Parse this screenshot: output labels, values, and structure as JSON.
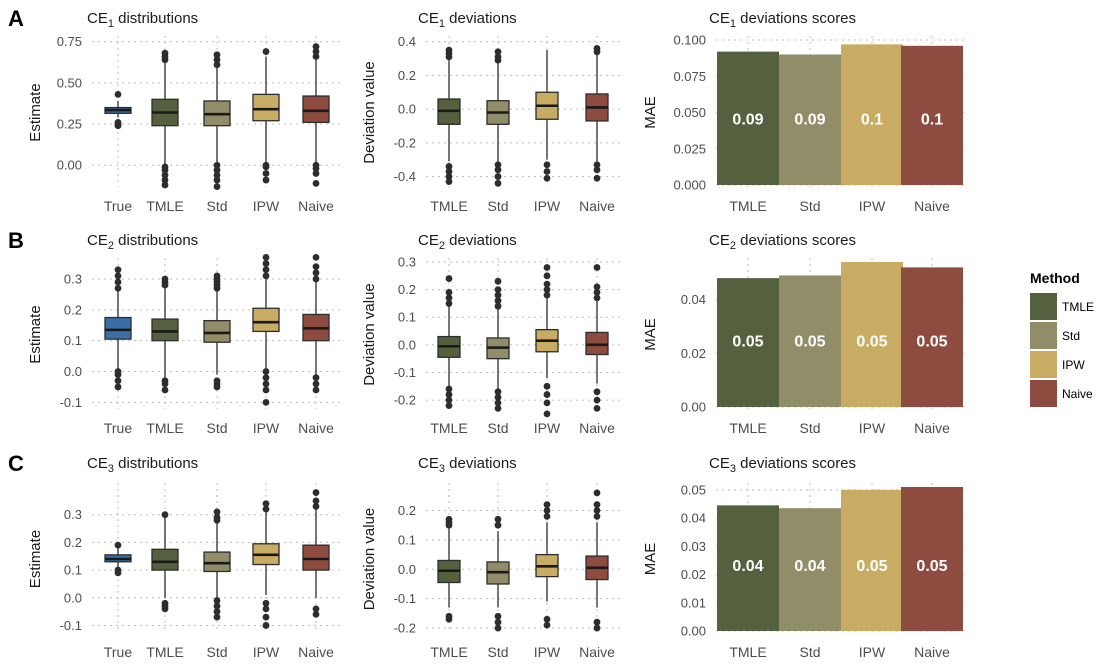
{
  "colors": {
    "True": "#3b6ea5",
    "TMLE": "#55603f",
    "Std": "#918d68",
    "IPW": "#c9ac64",
    "Naive": "#8e4c40"
  },
  "legend": {
    "title": "Method",
    "items": [
      "TMLE",
      "Std",
      "IPW",
      "Naive"
    ]
  },
  "chart_data": [
    {
      "panel": "A",
      "kind": "distributions",
      "type": "box",
      "title": "CE",
      "title_sub": "1",
      "title_rest": " distributions",
      "ylabel": "Estimate",
      "ylim": [
        -0.12,
        0.76
      ],
      "yticks": [
        0.0,
        0.25,
        0.5,
        0.75
      ],
      "yticklabels": [
        "0.00",
        "0.25",
        "0.50",
        "0.75"
      ],
      "categories": [
        "True",
        "TMLE",
        "Std",
        "IPW",
        "Naive"
      ],
      "boxes": [
        {
          "name": "True",
          "min": 0.29,
          "q1": 0.315,
          "median": 0.335,
          "q3": 0.35,
          "max": 0.39,
          "outliers": [
            0.24,
            0.25,
            0.26,
            0.43
          ]
        },
        {
          "name": "TMLE",
          "min": -0.04,
          "q1": 0.24,
          "median": 0.32,
          "q3": 0.4,
          "max": 0.63,
          "outliers": [
            -0.12,
            -0.09,
            -0.06,
            -0.03,
            -0.01,
            0.64,
            0.66,
            0.68
          ]
        },
        {
          "name": "Std",
          "min": -0.03,
          "q1": 0.24,
          "median": 0.31,
          "q3": 0.39,
          "max": 0.6,
          "outliers": [
            -0.13,
            -0.09,
            -0.06,
            -0.03,
            0.0,
            0.61,
            0.64,
            0.67
          ]
        },
        {
          "name": "IPW",
          "min": 0.0,
          "q1": 0.27,
          "median": 0.34,
          "q3": 0.43,
          "max": 0.66,
          "outliers": [
            -0.09,
            -0.05,
            -0.01,
            0.0,
            0.69
          ]
        },
        {
          "name": "Naive",
          "min": 0.0,
          "q1": 0.26,
          "median": 0.33,
          "q3": 0.42,
          "max": 0.64,
          "outliers": [
            -0.11,
            -0.05,
            -0.02,
            0.0,
            0.66,
            0.69,
            0.72
          ]
        }
      ]
    },
    {
      "panel": "A",
      "kind": "deviations",
      "type": "box",
      "title": "CE",
      "title_sub": "1",
      "title_rest": " deviations",
      "ylabel": "Deviation value",
      "ylim": [
        -0.45,
        0.41
      ],
      "yticks": [
        -0.4,
        -0.2,
        0.0,
        0.2,
        0.4
      ],
      "yticklabels": [
        "-0.4",
        "-0.2",
        "0.0",
        "0.2",
        "0.4"
      ],
      "categories": [
        "TMLE",
        "Std",
        "IPW",
        "Naive"
      ],
      "boxes": [
        {
          "name": "TMLE",
          "min": -0.31,
          "q1": -0.09,
          "median": -0.01,
          "q3": 0.06,
          "max": 0.29,
          "outliers": [
            -0.43,
            -0.4,
            -0.37,
            -0.34,
            0.31,
            0.33,
            0.35
          ]
        },
        {
          "name": "Std",
          "min": -0.32,
          "q1": -0.09,
          "median": -0.02,
          "q3": 0.05,
          "max": 0.27,
          "outliers": [
            -0.44,
            -0.4,
            -0.36,
            -0.33,
            0.29,
            0.31,
            0.34
          ]
        },
        {
          "name": "IPW",
          "min": -0.3,
          "q1": -0.06,
          "median": 0.02,
          "q3": 0.1,
          "max": 0.35,
          "outliers": [
            -0.41,
            -0.37,
            -0.33
          ]
        },
        {
          "name": "Naive",
          "min": -0.31,
          "q1": -0.07,
          "median": 0.01,
          "q3": 0.09,
          "max": 0.33,
          "outliers": [
            -0.41,
            -0.36,
            -0.33,
            0.34,
            0.36
          ]
        }
      ]
    },
    {
      "panel": "A",
      "kind": "scores",
      "type": "bar",
      "title": "CE",
      "title_sub": "1",
      "title_rest": " deviations scores",
      "ylabel": "MAE",
      "ylim": [
        0,
        0.1
      ],
      "yticks": [
        0.0,
        0.025,
        0.05,
        0.075,
        0.1
      ],
      "yticklabels": [
        "0.000",
        "0.025",
        "0.050",
        "0.075",
        "0.100"
      ],
      "categories": [
        "TMLE",
        "Std",
        "IPW",
        "Naive"
      ],
      "values": [
        0.092,
        0.09,
        0.097,
        0.096
      ],
      "labels": [
        "0.09",
        "0.09",
        "0.1",
        "0.1"
      ]
    },
    {
      "panel": "B",
      "kind": "distributions",
      "type": "box",
      "title": "CE",
      "title_sub": "2",
      "title_rest": " distributions",
      "ylabel": "Estimate",
      "ylim": [
        -0.115,
        0.355
      ],
      "yticks": [
        -0.1,
        0.0,
        0.1,
        0.2,
        0.3
      ],
      "yticklabels": [
        "-0.1",
        "0.0",
        "0.1",
        "0.2",
        "0.3"
      ],
      "categories": [
        "True",
        "TMLE",
        "Std",
        "IPW",
        "Naive"
      ],
      "boxes": [
        {
          "name": "True",
          "min": 0.0,
          "q1": 0.105,
          "median": 0.135,
          "q3": 0.175,
          "max": 0.265,
          "outliers": [
            -0.05,
            -0.03,
            -0.01,
            0.0,
            0.27,
            0.29,
            0.31,
            0.33
          ]
        },
        {
          "name": "TMLE",
          "min": -0.02,
          "q1": 0.1,
          "median": 0.13,
          "q3": 0.17,
          "max": 0.27,
          "outliers": [
            -0.06,
            -0.04,
            -0.03,
            0.28,
            0.29,
            0.3
          ]
        },
        {
          "name": "Std",
          "min": -0.01,
          "q1": 0.095,
          "median": 0.125,
          "q3": 0.165,
          "max": 0.26,
          "outliers": [
            -0.05,
            -0.04,
            -0.03,
            0.27,
            0.28,
            0.29,
            0.3,
            0.31
          ]
        },
        {
          "name": "IPW",
          "min": 0.01,
          "q1": 0.13,
          "median": 0.16,
          "q3": 0.205,
          "max": 0.3,
          "outliers": [
            -0.1,
            -0.06,
            -0.04,
            -0.02,
            0.0,
            0.31,
            0.33,
            0.35,
            0.37
          ]
        },
        {
          "name": "Naive",
          "min": -0.01,
          "q1": 0.1,
          "median": 0.14,
          "q3": 0.185,
          "max": 0.29,
          "outliers": [
            -0.06,
            -0.04,
            -0.02,
            0.3,
            0.32,
            0.34,
            0.37
          ]
        }
      ]
    },
    {
      "panel": "B",
      "kind": "deviations",
      "type": "box",
      "title": "CE",
      "title_sub": "2",
      "title_rest": " deviations",
      "ylabel": "Deviation value",
      "ylim": [
        -0.225,
        0.3
      ],
      "yticks": [
        -0.2,
        -0.1,
        0.0,
        0.1,
        0.2,
        0.3
      ],
      "yticklabels": [
        "-0.2",
        "-0.1",
        "0.0",
        "0.1",
        "0.2",
        "0.3"
      ],
      "categories": [
        "TMLE",
        "Std",
        "IPW",
        "Naive"
      ],
      "boxes": [
        {
          "name": "TMLE",
          "min": -0.15,
          "q1": -0.045,
          "median": -0.005,
          "q3": 0.03,
          "max": 0.14,
          "outliers": [
            -0.22,
            -0.2,
            -0.18,
            -0.16,
            0.15,
            0.17,
            0.19,
            0.24
          ]
        },
        {
          "name": "Std",
          "min": -0.16,
          "q1": -0.05,
          "median": -0.01,
          "q3": 0.025,
          "max": 0.13,
          "outliers": [
            -0.23,
            -0.21,
            -0.19,
            -0.17,
            0.14,
            0.16,
            0.18,
            0.2,
            0.23
          ]
        },
        {
          "name": "IPW",
          "min": -0.12,
          "q1": -0.025,
          "median": 0.015,
          "q3": 0.055,
          "max": 0.17,
          "outliers": [
            -0.25,
            -0.21,
            -0.18,
            -0.15,
            0.18,
            0.2,
            0.22,
            0.25,
            0.28
          ]
        },
        {
          "name": "Naive",
          "min": -0.14,
          "q1": -0.035,
          "median": 0.0,
          "q3": 0.045,
          "max": 0.16,
          "outliers": [
            -0.23,
            -0.2,
            -0.17,
            0.17,
            0.19,
            0.21,
            0.28
          ]
        }
      ]
    },
    {
      "panel": "B",
      "kind": "scores",
      "type": "bar",
      "title": "CE",
      "title_sub": "2",
      "title_rest": " deviations scores",
      "ylabel": "MAE",
      "ylim": [
        0,
        0.054
      ],
      "yticks": [
        0.0,
        0.02,
        0.04
      ],
      "yticklabels": [
        "0.00",
        "0.02",
        "0.04"
      ],
      "categories": [
        "TMLE",
        "Std",
        "IPW",
        "Naive"
      ],
      "values": [
        0.048,
        0.049,
        0.054,
        0.052
      ],
      "labels": [
        "0.05",
        "0.05",
        "0.05",
        "0.05"
      ]
    },
    {
      "panel": "C",
      "kind": "distributions",
      "type": "box",
      "title": "CE",
      "title_sub": "3",
      "title_rest": " distributions",
      "ylabel": "Estimate",
      "ylim": [
        -0.12,
        0.4
      ],
      "yticks": [
        -0.1,
        0.0,
        0.1,
        0.2,
        0.3
      ],
      "yticklabels": [
        "-0.1",
        "0.0",
        "0.1",
        "0.2",
        "0.3"
      ],
      "categories": [
        "True",
        "TMLE",
        "Std",
        "IPW",
        "Naive"
      ],
      "boxes": [
        {
          "name": "True",
          "min": 0.105,
          "q1": 0.13,
          "median": 0.14,
          "q3": 0.155,
          "max": 0.18,
          "outliers": [
            0.09,
            0.1,
            0.19
          ]
        },
        {
          "name": "TMLE",
          "min": 0.0,
          "q1": 0.1,
          "median": 0.13,
          "q3": 0.175,
          "max": 0.29,
          "outliers": [
            -0.04,
            -0.03,
            -0.02,
            0.3
          ]
        },
        {
          "name": "Std",
          "min": 0.0,
          "q1": 0.095,
          "median": 0.125,
          "q3": 0.165,
          "max": 0.27,
          "outliers": [
            -0.07,
            -0.05,
            -0.03,
            -0.01,
            0.28,
            0.29,
            0.31
          ]
        },
        {
          "name": "IPW",
          "min": 0.01,
          "q1": 0.12,
          "median": 0.155,
          "q3": 0.195,
          "max": 0.31,
          "outliers": [
            -0.1,
            -0.07,
            -0.04,
            -0.02,
            0.32,
            0.34
          ]
        },
        {
          "name": "Naive",
          "min": 0.0,
          "q1": 0.1,
          "median": 0.14,
          "q3": 0.19,
          "max": 0.32,
          "outliers": [
            -0.06,
            -0.04,
            0.33,
            0.35,
            0.38
          ]
        }
      ]
    },
    {
      "panel": "C",
      "kind": "deviations",
      "type": "box",
      "title": "CE",
      "title_sub": "3",
      "title_rest": " deviations",
      "ylabel": "Deviation value",
      "ylim": [
        -0.21,
        0.28
      ],
      "yticks": [
        -0.2,
        -0.1,
        0.0,
        0.1,
        0.2
      ],
      "yticklabels": [
        "-0.2",
        "-0.1",
        "0.0",
        "0.1",
        "0.2"
      ],
      "categories": [
        "TMLE",
        "Std",
        "IPW",
        "Naive"
      ],
      "boxes": [
        {
          "name": "TMLE",
          "min": -0.13,
          "q1": -0.045,
          "median": -0.005,
          "q3": 0.03,
          "max": 0.14,
          "outliers": [
            -0.17,
            -0.16,
            0.15,
            0.16,
            0.17
          ]
        },
        {
          "name": "Std",
          "min": -0.13,
          "q1": -0.05,
          "median": -0.01,
          "q3": 0.025,
          "max": 0.13,
          "outliers": [
            -0.2,
            -0.18,
            -0.16,
            0.15,
            0.17
          ]
        },
        {
          "name": "IPW",
          "min": -0.11,
          "q1": -0.025,
          "median": 0.01,
          "q3": 0.05,
          "max": 0.16,
          "outliers": [
            -0.19,
            -0.17,
            0.18,
            0.2,
            0.22
          ]
        },
        {
          "name": "Naive",
          "min": -0.13,
          "q1": -0.035,
          "median": 0.005,
          "q3": 0.045,
          "max": 0.16,
          "outliers": [
            -0.2,
            -0.18,
            0.18,
            0.2,
            0.22,
            0.26
          ]
        }
      ]
    },
    {
      "panel": "C",
      "kind": "scores",
      "type": "bar",
      "title": "CE",
      "title_sub": "3",
      "title_rest": " deviations scores",
      "ylabel": "MAE",
      "ylim": [
        0,
        0.051
      ],
      "yticks": [
        0.0,
        0.01,
        0.02,
        0.03,
        0.04,
        0.05
      ],
      "yticklabels": [
        "0.00",
        "0.01",
        "0.02",
        "0.03",
        "0.04",
        "0.05"
      ],
      "categories": [
        "TMLE",
        "Std",
        "IPW",
        "Naive"
      ],
      "values": [
        0.0445,
        0.0435,
        0.05,
        0.051
      ],
      "labels": [
        "0.04",
        "0.04",
        "0.05",
        "0.05"
      ]
    }
  ]
}
